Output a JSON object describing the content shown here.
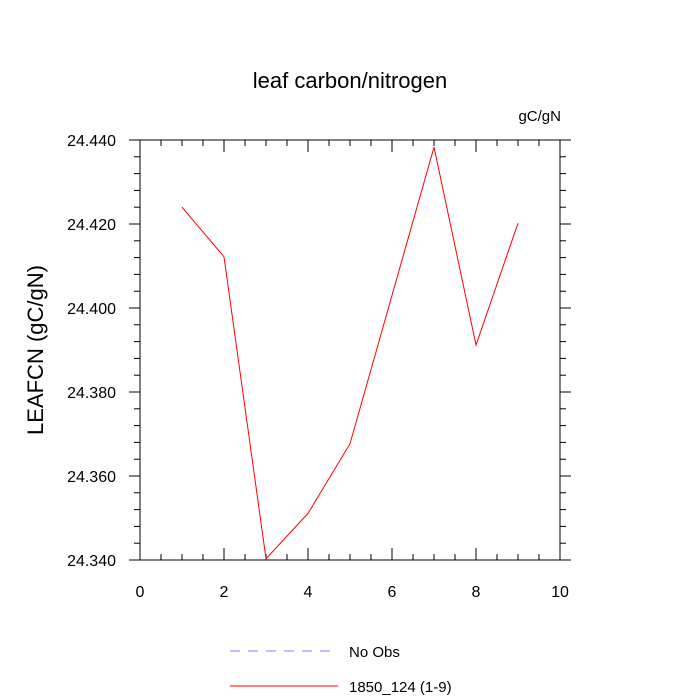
{
  "chart_data": {
    "type": "line",
    "title": "leaf carbon/nitrogen",
    "units_label": "gC/gN",
    "ylabel": "LEAFCN  (gC/gN)",
    "xlabel": "",
    "xlim": [
      0,
      10
    ],
    "ylim": [
      24.34,
      24.44
    ],
    "x_ticks": [
      0,
      2,
      4,
      6,
      8,
      10
    ],
    "x_tick_labels": [
      "0",
      "2",
      "4",
      "6",
      "8",
      "10"
    ],
    "y_ticks": [
      24.34,
      24.36,
      24.38,
      24.4,
      24.42,
      24.44
    ],
    "y_tick_labels": [
      "24.340",
      "24.360",
      "24.380",
      "24.400",
      "24.420",
      "24.440"
    ],
    "grid": false,
    "legend_position": "bottom",
    "series": [
      {
        "name": "1850_124 (1-9)",
        "color": "#ff0000",
        "style": "solid",
        "x": [
          1,
          2,
          3,
          4,
          5,
          6,
          7,
          8,
          9
        ],
        "y": [
          24.424,
          24.4122,
          24.3403,
          24.3511,
          24.3677,
          24.403,
          24.4383,
          24.3912,
          24.4202
        ]
      }
    ],
    "legend": [
      {
        "label": "No Obs",
        "color": "#8080ff",
        "style": "dashed"
      },
      {
        "label": "1850_124 (1-9)",
        "color": "#ff0000",
        "style": "solid"
      }
    ]
  }
}
